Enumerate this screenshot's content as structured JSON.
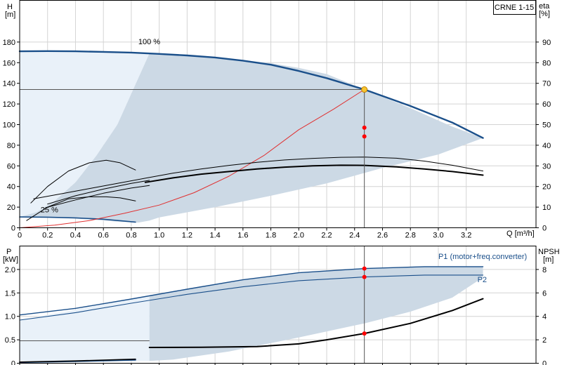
{
  "chart_data": [
    {
      "type": "line",
      "title": "CRNE 1-15",
      "y_left_label": [
        "H",
        "[m]"
      ],
      "y_right_label": [
        "eta",
        "[%]"
      ],
      "xlabel": "Q [m³/h]",
      "xlim": [
        0,
        3.7
      ],
      "xticks": [
        0,
        0.2,
        0.4,
        0.6,
        0.8,
        1.0,
        1.2,
        1.4,
        1.6,
        1.8,
        2.0,
        2.2,
        2.4,
        2.6,
        2.8,
        3.0,
        3.2
      ],
      "xtick_labels": [
        "0",
        "0.2",
        "0.4",
        "0.6",
        "0.8",
        "1.0",
        "1.2",
        "1.4",
        "1.6",
        "1.8",
        "2.0",
        "2.2",
        "2.4",
        "2.6",
        "2.8",
        "3.0",
        "3.2"
      ],
      "ylim": [
        0,
        200
      ],
      "yticks": [
        0,
        20,
        40,
        60,
        80,
        100,
        120,
        140,
        160,
        180
      ],
      "y2lim": [
        0,
        100
      ],
      "y2ticks": [
        0,
        10,
        20,
        30,
        40,
        50,
        60,
        70,
        80,
        90
      ],
      "grid": true,
      "curve_labels": [
        {
          "text": "100 %",
          "x": 0.85,
          "y": 178
        },
        {
          "text": "25 %",
          "x": 0.15,
          "y": 15
        }
      ],
      "operating_point": {
        "x": 2.47,
        "y": 134
      },
      "duty_markers": [
        {
          "x": 2.47,
          "y": 97
        },
        {
          "x": 2.47,
          "y": 88.5
        }
      ],
      "series": [
        {
          "role": "envelope-light",
          "color": "#e9f1f9",
          "x": [
            0,
            0.2,
            0.4,
            0.6,
            0.8,
            0.93,
            0.93,
            0.85,
            0.7,
            0.55,
            0.4,
            0.25,
            0.12,
            0
          ],
          "y": [
            171,
            171.2,
            171,
            170.5,
            169.8,
            169,
            169,
            145,
            100,
            70,
            44,
            26,
            15,
            10.5
          ]
        },
        {
          "role": "envelope-dark",
          "color": "#ccd9e5",
          "x": [
            0.93,
            1.2,
            1.5,
            1.8,
            2.0,
            2.2,
            2.47,
            2.8,
            3.1,
            3.32,
            3.32,
            3.0,
            2.6,
            2.2,
            1.8,
            1.4,
            1.0,
            0.93,
            0.85,
            0.7,
            0.55,
            0.4,
            0.25,
            0.12,
            0,
            0,
            0.12,
            0.25,
            0.4,
            0.55,
            0.7,
            0.85,
            0.93
          ],
          "y": [
            169,
            167,
            164,
            159.5,
            155,
            149,
            134,
            116,
            98,
            87,
            87,
            71,
            58,
            43,
            31,
            20,
            10,
            7,
            5,
            6,
            7.5,
            9,
            10,
            10.5,
            10.5,
            10.5,
            15,
            26,
            44,
            70,
            100,
            145,
            169
          ]
        },
        {
          "role": "head-100",
          "color": "#1a4f8a",
          "width": 2.4,
          "x": [
            0,
            0.2,
            0.4,
            0.6,
            0.8,
            1.0,
            1.2,
            1.4,
            1.6,
            1.8,
            2.0,
            2.2,
            2.47,
            2.8,
            3.1,
            3.32
          ],
          "y": [
            171,
            171.2,
            171,
            170.5,
            169.8,
            168.5,
            167,
            165,
            162,
            158,
            152,
            145,
            134,
            118,
            102,
            87
          ]
        },
        {
          "role": "head-25",
          "color": "#1a4f8a",
          "width": 1.6,
          "x": [
            0,
            0.2,
            0.4,
            0.6,
            0.83
          ],
          "y": [
            10.5,
            10.3,
            9.6,
            8.3,
            5.5
          ]
        },
        {
          "role": "system-curve",
          "color": "#e03030",
          "width": 1,
          "x": [
            0,
            0.25,
            0.5,
            0.75,
            1.0,
            1.25,
            1.5,
            1.75,
            2.0,
            2.25,
            2.47
          ],
          "y": [
            0,
            2.5,
            7,
            14,
            22,
            34,
            50,
            70,
            95,
            115,
            134
          ]
        },
        {
          "role": "efficiency-overall",
          "color": "#000000",
          "width": 1,
          "x": [
            0.1,
            0.3,
            0.5,
            0.7,
            0.9,
            1.1,
            1.3,
            1.5,
            1.7,
            1.9,
            2.1,
            2.3,
            2.47,
            2.7,
            2.9,
            3.1,
            3.32
          ],
          "y": [
            28,
            33,
            38,
            43,
            48,
            53,
            57,
            60.5,
            63.5,
            65.7,
            67.3,
            68.3,
            68.5,
            67.4,
            64.6,
            60.6,
            55
          ]
        },
        {
          "role": "efficiency-hydraulic",
          "color": "#000000",
          "width": 2,
          "x": [
            0.9,
            1.1,
            1.3,
            1.5,
            1.7,
            1.9,
            2.1,
            2.3,
            2.47,
            2.7,
            2.9,
            3.1,
            3.32
          ],
          "y": [
            44,
            48.4,
            52,
            54.5,
            57,
            58.8,
            60,
            60.6,
            60.5,
            59,
            57,
            54.5,
            51
          ]
        },
        {
          "role": "efficiency-low-1",
          "color": "#000000",
          "width": 1,
          "x": [
            0.08,
            0.2,
            0.35,
            0.5,
            0.62,
            0.72,
            0.83
          ],
          "y": [
            24,
            40,
            55,
            63,
            65.5,
            63,
            56
          ]
        },
        {
          "role": "efficiency-low-2",
          "color": "#000000",
          "width": 1,
          "x": [
            0.05,
            0.2,
            0.35,
            0.5,
            0.62,
            0.72,
            0.83
          ],
          "y": [
            7,
            20,
            28,
            30,
            30,
            29,
            26
          ]
        },
        {
          "role": "efficiency-low-3",
          "color": "#000000",
          "width": 1,
          "x": [
            0.2,
            0.4,
            0.6,
            0.8,
            0.93
          ],
          "y": [
            23,
            31,
            37.5,
            43,
            46
          ]
        },
        {
          "role": "efficiency-low-4",
          "color": "#000000",
          "width": 1,
          "x": [
            0.2,
            0.4,
            0.6,
            0.8,
            0.93
          ],
          "y": [
            20,
            27,
            33.5,
            38.5,
            41
          ]
        }
      ]
    },
    {
      "type": "line",
      "y_left_label": [
        "P",
        "[kW]"
      ],
      "y_right_label": [
        "NPSH",
        "[m]"
      ],
      "xlim": [
        0,
        3.7
      ],
      "xticks": [
        0,
        0.2,
        0.4,
        0.6,
        0.8,
        1.0,
        1.2,
        1.4,
        1.6,
        1.8,
        2.0,
        2.2,
        2.4,
        2.6,
        2.8,
        3.0,
        3.2
      ],
      "ylim": [
        0,
        2.5
      ],
      "yticks": [
        0,
        0.5,
        1.0,
        1.5,
        2.0
      ],
      "ytick_labels": [
        "0",
        "0.5",
        "1.0",
        "1.5",
        "2.0"
      ],
      "y2lim": [
        0,
        10
      ],
      "y2ticks": [
        0,
        2,
        4,
        6,
        8
      ],
      "grid": true,
      "curve_labels": [
        {
          "text": "P1 (motor+freq.converter)",
          "x": 3.0,
          "y": 2.22
        },
        {
          "text": "P2",
          "x": 3.28,
          "y": 1.73
        }
      ],
      "operating_point_x": 2.47,
      "duty_markers": [
        {
          "x": 2.47,
          "y": 2.02
        },
        {
          "x": 2.47,
          "y": 1.84
        },
        {
          "x": 2.47,
          "y": 0.635
        }
      ],
      "series": [
        {
          "role": "envelope-light",
          "color": "#e9f1f9",
          "x": [
            0,
            0.93,
            0.93,
            0
          ],
          "y": [
            0.92,
            1.44,
            0.05,
            0.05
          ]
        },
        {
          "role": "envelope-dark",
          "color": "#ccd9e5",
          "x": [
            0.93,
            1.3,
            1.7,
            2.1,
            2.47,
            2.9,
            3.32,
            3.32,
            3.1,
            2.8,
            2.47,
            2.0,
            1.5,
            1.1,
            0.93
          ],
          "y": [
            1.45,
            1.64,
            1.82,
            1.95,
            2.02,
            2.06,
            2.06,
            1.83,
            1.4,
            1.1,
            0.85,
            0.55,
            0.25,
            0.08,
            0.05
          ]
        },
        {
          "name": "P1 (motor+freq.converter)",
          "role": "p1",
          "color": "#1a4f8a",
          "width": 1.4,
          "x": [
            0,
            0.4,
            0.8,
            1.2,
            1.6,
            2.0,
            2.47,
            2.9,
            3.32
          ],
          "y": [
            1.03,
            1.17,
            1.37,
            1.58,
            1.78,
            1.93,
            2.02,
            2.06,
            2.06
          ]
        },
        {
          "name": "P2",
          "role": "p2",
          "color": "#1a4f8a",
          "width": 1.1,
          "x": [
            0,
            0.4,
            0.8,
            1.2,
            1.6,
            2.0,
            2.47,
            2.9,
            3.32
          ],
          "y": [
            0.92,
            1.08,
            1.28,
            1.47,
            1.63,
            1.76,
            1.84,
            1.88,
            1.88
          ]
        },
        {
          "role": "npsh",
          "color": "#000000",
          "width": 2,
          "x": [
            0.93,
            1.3,
            1.7,
            2.0,
            2.2,
            2.47,
            2.8,
            3.1,
            3.32
          ],
          "y": [
            1.35,
            1.36,
            1.42,
            1.65,
            2.0,
            2.54,
            3.4,
            4.5,
            5.5
          ],
          "axis": "right"
        },
        {
          "role": "p-25",
          "color": "#1a4f8a",
          "width": 1.8,
          "x": [
            0,
            0.4,
            0.83
          ],
          "y": [
            0.02,
            0.04,
            0.07
          ]
        },
        {
          "role": "npsh-25",
          "color": "#000000",
          "width": 1.6,
          "x": [
            0,
            0.4,
            0.83
          ],
          "y": [
            0.1,
            0.2,
            0.35
          ],
          "axis": "right"
        }
      ]
    }
  ]
}
